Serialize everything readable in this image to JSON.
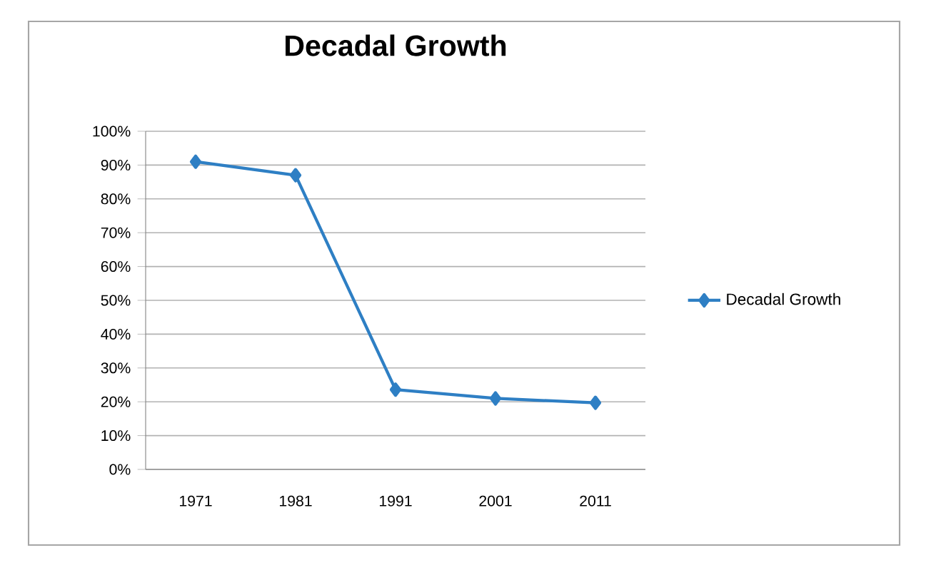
{
  "chart_data": {
    "type": "line",
    "title": "Decadal Growth",
    "categories": [
      "1971",
      "1981",
      "1991",
      "2001",
      "2011"
    ],
    "series": [
      {
        "name": "Decadal Growth",
        "color": "#2e7fc4",
        "values": [
          91,
          87,
          23.6,
          21,
          19.7
        ]
      }
    ],
    "ylim": [
      0,
      100
    ],
    "yticks": [
      {
        "value": 0,
        "label": "0%"
      },
      {
        "value": 10,
        "label": "10%"
      },
      {
        "value": 20,
        "label": "20%"
      },
      {
        "value": 30,
        "label": "30%"
      },
      {
        "value": 40,
        "label": "40%"
      },
      {
        "value": 50,
        "label": "50%"
      },
      {
        "value": 60,
        "label": "60%"
      },
      {
        "value": 70,
        "label": "70%"
      },
      {
        "value": 80,
        "label": "80%"
      },
      {
        "value": 90,
        "label": "90%"
      },
      {
        "value": 100,
        "label": "100%"
      }
    ],
    "grid": "y",
    "legend": "right",
    "marker": "diamond",
    "line_style": "solid"
  }
}
